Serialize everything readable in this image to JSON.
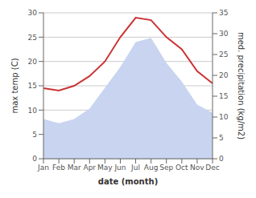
{
  "chart_data": {
    "type": "line",
    "xlabel": "date (month)",
    "ylabel": "max temp (C)",
    "y2label": "med. precipitation (kg/m2)",
    "categories": [
      "Jan",
      "Feb",
      "Mar",
      "Apr",
      "May",
      "Jun",
      "Jul",
      "Aug",
      "Sep",
      "Oct",
      "Nov",
      "Dec"
    ],
    "series": [
      {
        "type": "area",
        "axis": "y2",
        "color": "#c8d4f0",
        "values": [
          9.5,
          8.5,
          9.5,
          12.0,
          17.0,
          22.0,
          28.0,
          29.0,
          23.0,
          18.5,
          13.0,
          11.0
        ]
      },
      {
        "type": "line",
        "color": "#cc3333",
        "values": [
          14.5,
          14.0,
          15.0,
          17.0,
          20.0,
          25.0,
          29.0,
          28.5,
          25.0,
          22.5,
          18.0,
          15.5
        ]
      }
    ],
    "ylim": [
      0,
      30
    ],
    "yticks": [
      0,
      5,
      10,
      15,
      20,
      25,
      30
    ],
    "y2lim": [
      0,
      35
    ],
    "y2ticks": [
      0,
      5,
      10,
      15,
      20,
      25,
      30,
      35
    ],
    "grid": true
  }
}
